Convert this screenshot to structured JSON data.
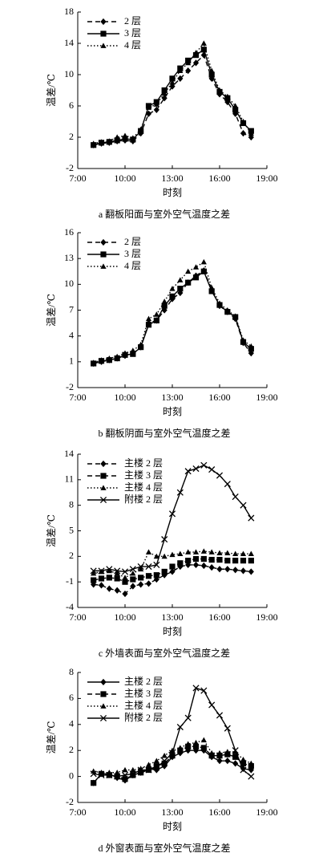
{
  "chart_data": [
    {
      "type": "line",
      "caption": "a 翻板阳面与室外空气温度之差",
      "xlabel": "时刻",
      "ylabel": "温差/℃",
      "legend": "upper left",
      "x": [
        8,
        8.5,
        9,
        9.5,
        10,
        10.5,
        11,
        11.5,
        12,
        12.5,
        13,
        13.5,
        14,
        14.5,
        15,
        15.5,
        16,
        16.5,
        17,
        17.5,
        18
      ],
      "xlim": [
        7,
        19
      ],
      "xticks": [
        {
          "value": 7,
          "label": "7:00"
        },
        {
          "value": 10,
          "label": "10:00"
        },
        {
          "value": 13,
          "label": "13:00"
        },
        {
          "value": 16,
          "label": "16:00"
        },
        {
          "value": 19,
          "label": "19:00"
        }
      ],
      "ylim": [
        -2,
        18
      ],
      "yticks": [
        -2,
        2,
        6,
        10,
        14,
        18
      ],
      "series": [
        {
          "name": "2 层",
          "color": "#000000",
          "linestyle": "dashed",
          "marker": "diamond",
          "values": [
            1.0,
            1.2,
            1.3,
            1.5,
            1.6,
            1.5,
            2.5,
            5.0,
            5.5,
            7.0,
            8.5,
            9.5,
            10.5,
            11.5,
            12.5,
            9.5,
            7.5,
            6.5,
            5.0,
            2.5,
            2.0
          ]
        },
        {
          "name": "3 层",
          "color": "#000000",
          "linestyle": "solid",
          "marker": "square",
          "values": [
            1.0,
            1.3,
            1.4,
            1.6,
            1.8,
            1.7,
            2.8,
            6.0,
            6.5,
            8.0,
            9.5,
            10.8,
            11.8,
            12.5,
            13.2,
            10.0,
            7.8,
            7.0,
            5.5,
            3.8,
            2.8
          ]
        },
        {
          "name": "4 层",
          "color": "#000000",
          "linestyle": "dotted",
          "marker": "triangle",
          "values": [
            1.2,
            1.4,
            1.5,
            2.0,
            2.2,
            1.9,
            3.0,
            5.8,
            6.2,
            7.6,
            9.0,
            10.5,
            11.5,
            12.8,
            14.0,
            10.5,
            8.0,
            7.2,
            6.0,
            4.0,
            2.5
          ]
        }
      ]
    },
    {
      "type": "line",
      "caption": "b 翻板阴面与室外空气温度之差",
      "xlabel": "时刻",
      "ylabel": "温差/℃",
      "legend": "upper left",
      "x": [
        8,
        8.5,
        9,
        9.5,
        10,
        10.5,
        11,
        11.5,
        12,
        12.5,
        13,
        13.5,
        14,
        14.5,
        15,
        15.5,
        16,
        16.5,
        17,
        17.5,
        18
      ],
      "xlim": [
        7,
        19
      ],
      "xticks": [
        {
          "value": 7,
          "label": "7:00"
        },
        {
          "value": 10,
          "label": "10:00"
        },
        {
          "value": 13,
          "label": "13:00"
        },
        {
          "value": 16,
          "label": "16:00"
        },
        {
          "value": 19,
          "label": "19:00"
        }
      ],
      "ylim": [
        -2,
        16
      ],
      "yticks": [
        -2,
        1,
        4,
        7,
        10,
        13,
        16
      ],
      "series": [
        {
          "name": "2 层",
          "color": "#000000",
          "linestyle": "dashed",
          "marker": "diamond",
          "values": [
            0.8,
            1.0,
            1.2,
            1.4,
            1.7,
            2.0,
            2.7,
            5.5,
            5.8,
            7.0,
            8.3,
            9.0,
            10.2,
            11.0,
            11.6,
            9.4,
            7.5,
            6.8,
            6.0,
            3.2,
            2.0
          ]
        },
        {
          "name": "3 层",
          "color": "#000000",
          "linestyle": "solid",
          "marker": "square",
          "values": [
            0.8,
            1.1,
            1.2,
            1.4,
            1.8,
            1.9,
            2.7,
            5.3,
            5.8,
            7.5,
            8.6,
            9.5,
            10.2,
            10.8,
            11.5,
            9.2,
            7.6,
            6.8,
            6.2,
            3.3,
            2.5
          ]
        },
        {
          "name": "4 层",
          "color": "#000000",
          "linestyle": "dotted",
          "marker": "triangle",
          "values": [
            0.9,
            1.2,
            1.4,
            1.6,
            2.0,
            2.3,
            3.0,
            6.0,
            6.5,
            8.0,
            9.5,
            10.5,
            11.5,
            12.0,
            12.6,
            9.6,
            7.8,
            7.0,
            6.3,
            3.5,
            2.8
          ]
        }
      ]
    },
    {
      "type": "line",
      "caption": "c 外墙表面与室外空气温度之差",
      "xlabel": "时刻",
      "ylabel": "温差/℃",
      "legend": "upper left",
      "x": [
        8,
        8.5,
        9,
        9.5,
        10,
        10.5,
        11,
        11.5,
        12,
        12.5,
        13,
        13.5,
        14,
        14.5,
        15,
        15.5,
        16,
        16.5,
        17,
        17.5,
        18
      ],
      "xlim": [
        7,
        19
      ],
      "xticks": [
        {
          "value": 7,
          "label": "7:00"
        },
        {
          "value": 10,
          "label": "10:00"
        },
        {
          "value": 13,
          "label": "13:00"
        },
        {
          "value": 16,
          "label": "16:00"
        },
        {
          "value": 19,
          "label": "19:00"
        }
      ],
      "ylim": [
        -4,
        14
      ],
      "yticks": [
        -4,
        -1,
        2,
        5,
        8,
        11,
        14
      ],
      "series": [
        {
          "name": "主楼 2 层",
          "color": "#000000",
          "linestyle": "dashed",
          "marker": "diamond",
          "values": [
            -1.3,
            -1.4,
            -1.8,
            -2.0,
            -2.4,
            -1.5,
            -1.3,
            -1.2,
            -0.7,
            -0.2,
            0.2,
            0.8,
            1.0,
            1.0,
            0.9,
            0.7,
            0.5,
            0.5,
            0.4,
            0.3,
            0.2
          ]
        },
        {
          "name": "主楼 3 层",
          "color": "#000000",
          "linestyle": "dashed",
          "marker": "square",
          "values": [
            -0.8,
            -0.6,
            -0.5,
            -0.6,
            -1.0,
            -0.7,
            -0.5,
            -0.3,
            -0.2,
            0.2,
            0.8,
            1.2,
            1.5,
            1.7,
            1.7,
            1.6,
            1.6,
            1.5,
            1.5,
            1.5,
            1.5
          ]
        },
        {
          "name": "主楼 4 层",
          "color": "#000000",
          "linestyle": "dotted",
          "marker": "triangle",
          "values": [
            0.0,
            0.2,
            0.3,
            0.0,
            -0.5,
            0.0,
            0.5,
            2.5,
            2.0,
            2.0,
            2.2,
            2.3,
            2.5,
            2.5,
            2.6,
            2.5,
            2.4,
            2.4,
            2.3,
            2.3,
            2.3
          ]
        },
        {
          "name": "附楼 2 层",
          "color": "#000000",
          "linestyle": "solid",
          "marker": "x",
          "values": [
            0.3,
            0.3,
            0.5,
            0.3,
            0.2,
            0.5,
            0.8,
            0.8,
            1.0,
            4.0,
            7.0,
            9.5,
            12.0,
            12.3,
            12.7,
            12.2,
            11.5,
            10.5,
            9.0,
            8.0,
            6.5
          ]
        }
      ]
    },
    {
      "type": "line",
      "caption": "d 外窗表面与室外空气温度之差",
      "xlabel": "时刻",
      "ylabel": "温差/℃",
      "legend": "upper left",
      "x": [
        8,
        8.5,
        9,
        9.5,
        10,
        10.5,
        11,
        11.5,
        12,
        12.5,
        13,
        13.5,
        14,
        14.5,
        15,
        15.5,
        16,
        16.5,
        17,
        17.5,
        18
      ],
      "xlim": [
        7,
        19
      ],
      "xticks": [
        {
          "value": 7,
          "label": "7:00"
        },
        {
          "value": 10,
          "label": "10:00"
        },
        {
          "value": 13,
          "label": "13:00"
        },
        {
          "value": 16,
          "label": "16:00"
        },
        {
          "value": 19,
          "label": "19:00"
        }
      ],
      "ylim": [
        -2,
        8
      ],
      "yticks": [
        -2,
        0,
        2,
        4,
        6,
        8
      ],
      "series": [
        {
          "name": "主楼 2 层",
          "color": "#000000",
          "linestyle": "solid",
          "marker": "diamond",
          "values": [
            -0.5,
            0.2,
            0.2,
            -0.1,
            -0.3,
            0.1,
            0.3,
            0.6,
            0.5,
            0.8,
            1.5,
            1.8,
            2.0,
            2.0,
            2.0,
            1.5,
            1.2,
            1.2,
            1.0,
            0.6,
            0.5
          ]
        },
        {
          "name": "主楼 3 层",
          "color": "#000000",
          "linestyle": "dashed",
          "marker": "square",
          "values": [
            -0.5,
            0.2,
            0.1,
            0.0,
            -0.2,
            0.1,
            0.3,
            0.5,
            0.8,
            1.0,
            1.6,
            2.0,
            2.3,
            2.3,
            2.2,
            1.6,
            1.6,
            1.7,
            1.5,
            1.0,
            0.8
          ]
        },
        {
          "name": "主楼 4 层",
          "color": "#000000",
          "linestyle": "dotted",
          "marker": "triangle",
          "values": [
            0.4,
            0.3,
            0.3,
            0.3,
            0.5,
            0.5,
            0.6,
            0.9,
            1.2,
            1.6,
            2.0,
            2.2,
            2.5,
            2.6,
            2.8,
            1.8,
            1.8,
            1.9,
            1.9,
            1.3,
            1.0
          ]
        },
        {
          "name": "附楼 2 层",
          "color": "#000000",
          "linestyle": "solid",
          "marker": "x",
          "values": [
            0.2,
            0.1,
            0.1,
            0.0,
            0.1,
            0.2,
            0.5,
            0.5,
            0.7,
            1.2,
            1.8,
            3.8,
            4.5,
            6.8,
            6.6,
            5.5,
            4.7,
            3.7,
            2.0,
            0.5,
            0.0
          ]
        }
      ]
    }
  ]
}
